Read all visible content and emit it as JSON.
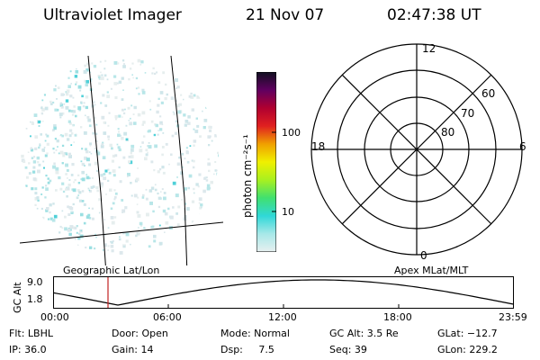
{
  "header": {
    "instrument": "Ultraviolet Imager",
    "date": "21 Nov 07",
    "time": "02:47:38 UT"
  },
  "image_panel": {
    "label": "Geographic Lat/Lon"
  },
  "colorbar": {
    "unit_label": "photon cm⁻²s⁻¹",
    "ticks": [
      "100",
      "10"
    ],
    "colors": [
      "#e8f0f0",
      "#a8e8e8",
      "#30d8d8",
      "#40e070",
      "#a8f020",
      "#f0f000",
      "#f0a000",
      "#e02020",
      "#b00030",
      "#600060",
      "#101020"
    ]
  },
  "polar_plot": {
    "label": "Apex MLat/MLT",
    "mlt_labels": {
      "top": "12",
      "left": "18",
      "right": "6",
      "bottom": "0"
    },
    "lat_labels": [
      "60",
      "70",
      "80"
    ]
  },
  "altitude_plot": {
    "ylabel": "GC Alt",
    "yticks": [
      "9.0",
      "1.8"
    ],
    "xticks": [
      "00:00",
      "06:00",
      "12:00",
      "18:00",
      "23:59"
    ]
  },
  "info": {
    "filter": "Flt: LBHL",
    "door": "Door: Open",
    "mode": "Mode: Normal",
    "gc_alt": "GC Alt: 3.5 Re",
    "glat": "GLat: −12.7",
    "ip": "IP: 36.0",
    "gain": "Gain: 14",
    "dsp": "Dsp:     7.5",
    "seq": "Seq: 39",
    "glon": "GLon: 229.2"
  }
}
